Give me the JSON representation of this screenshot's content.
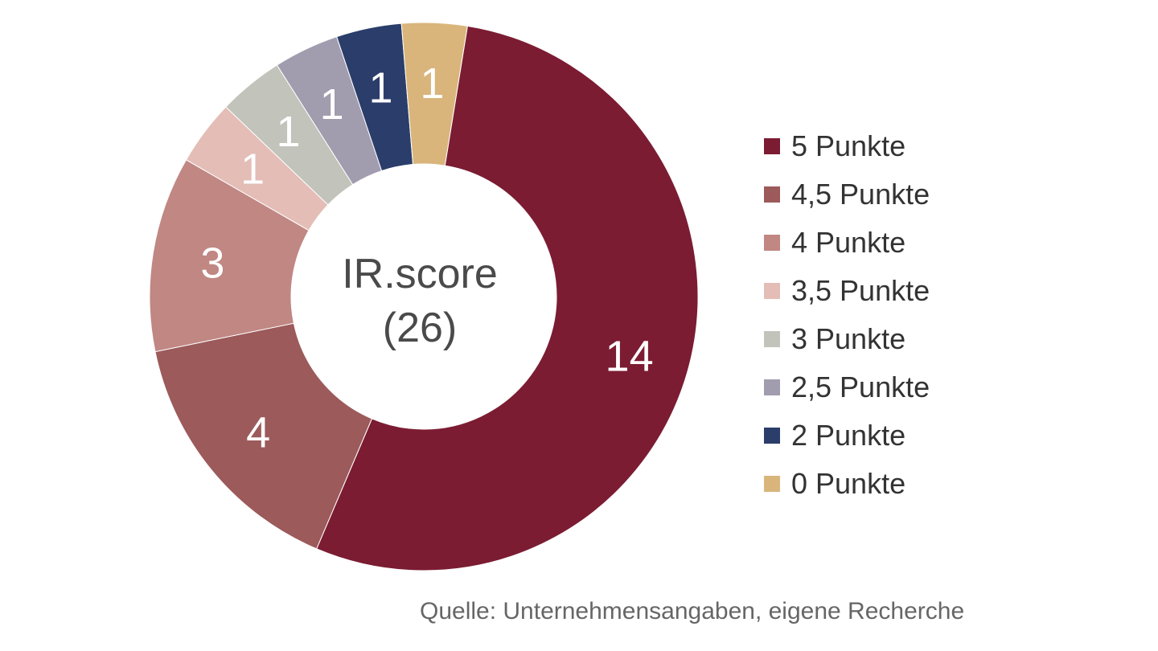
{
  "chart_data": {
    "type": "pie",
    "variant": "donut",
    "center_label": [
      "IR.score",
      "(26)"
    ],
    "categories": [
      "5 Punkte",
      "4,5 Punkte",
      "4 Punkte",
      "3,5 Punkte",
      "3 Punkte",
      "2,5 Punkte",
      "2 Punkte",
      "0 Punkte"
    ],
    "values": [
      14,
      4,
      3,
      1,
      1,
      1,
      1,
      1
    ],
    "value_labels": [
      "14",
      "4",
      "3",
      "1",
      "1",
      "1",
      "1",
      "1"
    ],
    "colors": [
      "#7b1c32",
      "#9c5a5b",
      "#c08783",
      "#e3bdb6",
      "#c2c3bb",
      "#a29caf",
      "#2b3d6a",
      "#d9b57c"
    ],
    "legend_position": "right"
  },
  "source": "Quelle: Unternehmensangaben, eigene Recherche"
}
